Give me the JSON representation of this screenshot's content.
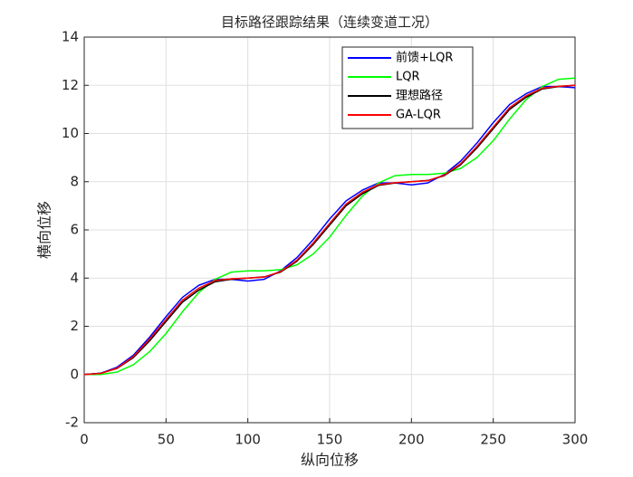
{
  "chart_data": {
    "type": "line",
    "title": "目标路径跟踪结果（连续变道工况）",
    "x_label": "纵向位移",
    "y_label": "横向位移",
    "x": [
      0,
      10,
      20,
      30,
      40,
      50,
      60,
      70,
      80,
      90,
      100,
      110,
      120,
      130,
      140,
      150,
      160,
      170,
      180,
      190,
      200,
      210,
      220,
      230,
      240,
      250,
      260,
      270,
      280,
      290,
      300
    ],
    "series": [
      {
        "name": "前馈+LQR",
        "color": "#0000ff",
        "values": [
          0,
          0.05,
          0.3,
          0.8,
          1.55,
          2.4,
          3.2,
          3.7,
          3.95,
          3.95,
          3.88,
          3.95,
          4.3,
          4.85,
          5.6,
          6.45,
          7.2,
          7.65,
          7.95,
          7.95,
          7.87,
          7.95,
          8.3,
          8.85,
          9.6,
          10.45,
          11.2,
          11.65,
          11.95,
          11.95,
          11.9
        ]
      },
      {
        "name": "LQR",
        "color": "#00ff00",
        "values": [
          0,
          0,
          0.1,
          0.4,
          0.95,
          1.7,
          2.6,
          3.4,
          3.95,
          4.25,
          4.3,
          4.3,
          4.35,
          4.55,
          5.0,
          5.7,
          6.6,
          7.4,
          7.95,
          8.25,
          8.3,
          8.3,
          8.35,
          8.55,
          9.0,
          9.7,
          10.6,
          11.4,
          11.95,
          12.25,
          12.3
        ]
      },
      {
        "name": "理想路径",
        "color": "#000000",
        "values": [
          0,
          0.05,
          0.25,
          0.7,
          1.4,
          2.2,
          3.0,
          3.5,
          3.85,
          3.95,
          4.0,
          4.05,
          4.25,
          4.7,
          5.4,
          6.2,
          7.0,
          7.5,
          7.85,
          7.95,
          8.0,
          8.05,
          8.25,
          8.7,
          9.4,
          10.2,
          11.0,
          11.5,
          11.85,
          11.95,
          12.0
        ]
      },
      {
        "name": "GA-LQR",
        "color": "#ff0000",
        "values": [
          0,
          0.04,
          0.26,
          0.74,
          1.47,
          2.28,
          3.08,
          3.58,
          3.9,
          3.97,
          4.0,
          4.04,
          4.27,
          4.74,
          5.46,
          6.27,
          7.07,
          7.56,
          7.88,
          7.96,
          8.0,
          8.04,
          8.27,
          8.74,
          9.46,
          10.27,
          11.07,
          11.56,
          11.88,
          11.96,
          12.0
        ]
      }
    ],
    "xlim": [
      0,
      300
    ],
    "xticks": [
      0,
      50,
      100,
      150,
      200,
      250,
      300
    ],
    "ylim": [
      -2,
      14
    ],
    "yticks": [
      -2,
      0,
      2,
      4,
      6,
      8,
      10,
      12,
      14
    ],
    "grid": true,
    "legend": "top-right"
  }
}
